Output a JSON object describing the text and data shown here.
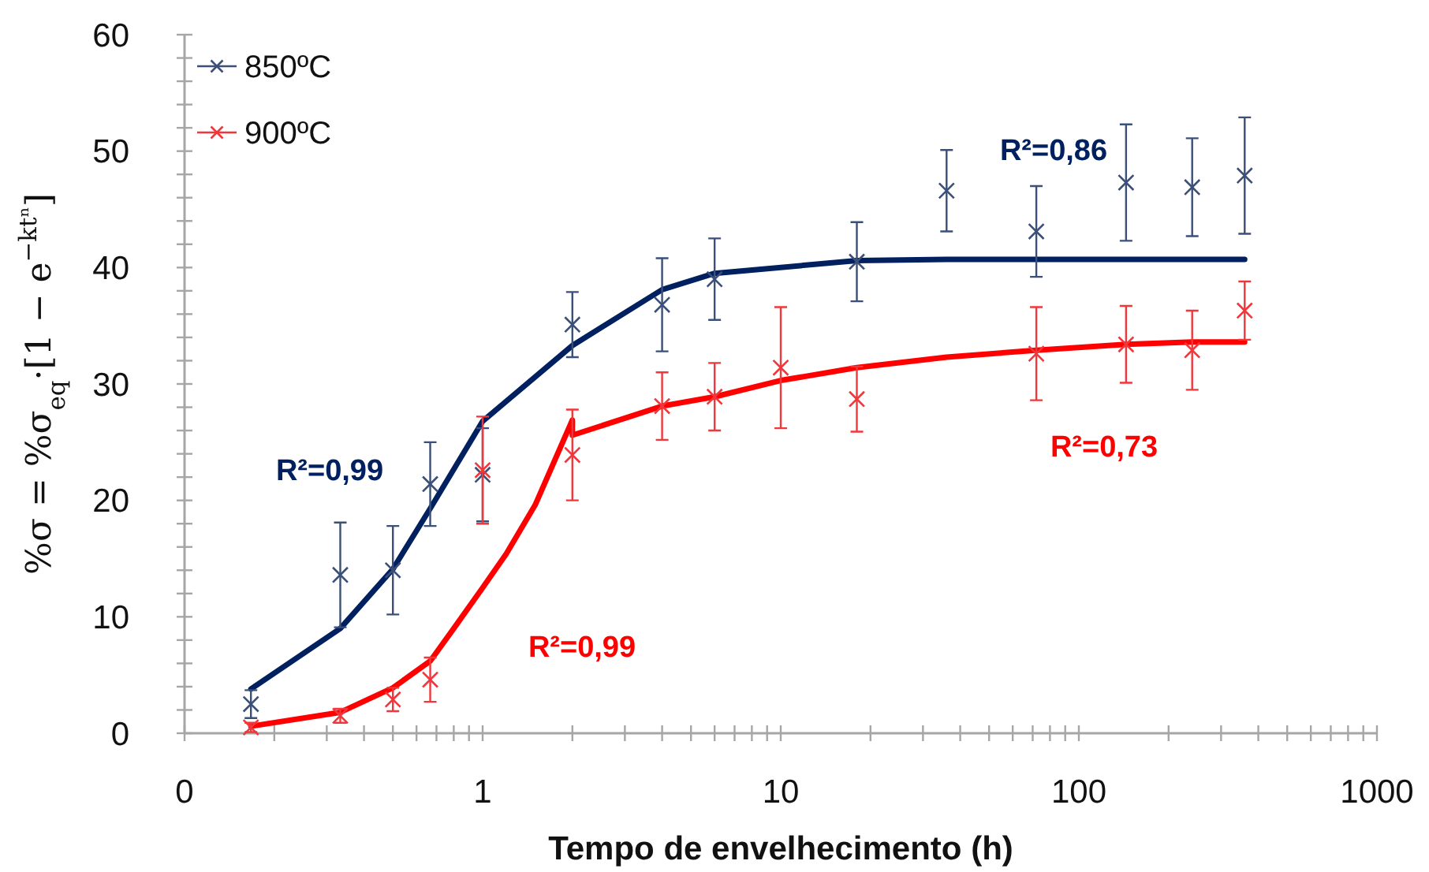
{
  "chart_data": {
    "type": "scatter",
    "xlabel": "Tempo de envelhecimento (h)",
    "ylabel": "%σ = %σ$_{eq}$·[1 − e$^{−ktⁿ}$]",
    "log": "x",
    "legend": "top left",
    "marker": "cross",
    "xlim": [
      0.1,
      1000
    ],
    "ylim": [
      0,
      60
    ],
    "xticks": [
      {
        "value": 0.1,
        "label": "0"
      },
      {
        "value": 0.2,
        "label": null
      },
      {
        "value": 0.3,
        "label": null
      },
      {
        "value": 0.4,
        "label": null
      },
      {
        "value": 0.5,
        "label": null
      },
      {
        "value": 0.6,
        "label": null
      },
      {
        "value": 0.7,
        "label": null
      },
      {
        "value": 0.8,
        "label": null
      },
      {
        "value": 0.9,
        "label": null
      },
      1,
      {
        "value": 2,
        "label": null
      },
      {
        "value": 3,
        "label": null
      },
      {
        "value": 4,
        "label": null
      },
      {
        "value": 5,
        "label": null
      },
      {
        "value": 6,
        "label": null
      },
      {
        "value": 7,
        "label": null
      },
      {
        "value": 8,
        "label": null
      },
      {
        "value": 9,
        "label": null
      },
      10,
      {
        "value": 20,
        "label": null
      },
      {
        "value": 30,
        "label": null
      },
      {
        "value": 40,
        "label": null
      },
      {
        "value": 50,
        "label": null
      },
      {
        "value": 60,
        "label": null
      },
      {
        "value": 70,
        "label": null
      },
      {
        "value": 80,
        "label": null
      },
      {
        "value": 90,
        "label": null
      },
      100,
      {
        "value": 200,
        "label": null
      },
      {
        "value": 300,
        "label": null
      },
      {
        "value": 400,
        "label": null
      },
      {
        "value": 500,
        "label": null
      },
      {
        "value": 600,
        "label": null
      },
      {
        "value": 700,
        "label": null
      },
      {
        "value": 800,
        "label": null
      },
      {
        "value": 900,
        "label": null
      },
      1000
    ],
    "yticks": [
      0,
      {
        "value": 2,
        "label": null
      },
      {
        "value": 4,
        "label": null
      },
      {
        "value": 6,
        "label": null
      },
      {
        "value": 8,
        "label": null
      },
      10,
      {
        "value": 12,
        "label": null
      },
      {
        "value": 14,
        "label": null
      },
      {
        "value": 16,
        "label": null
      },
      {
        "value": 18,
        "label": null
      },
      20,
      {
        "value": 22,
        "label": null
      },
      {
        "value": 24,
        "label": null
      },
      {
        "value": 26,
        "label": null
      },
      {
        "value": 28,
        "label": null
      },
      30,
      {
        "value": 32,
        "label": null
      },
      {
        "value": 34,
        "label": null
      },
      {
        "value": 36,
        "label": null
      },
      {
        "value": 38,
        "label": null
      },
      40,
      {
        "value": 42,
        "label": null
      },
      {
        "value": 44,
        "label": null
      },
      {
        "value": 46,
        "label": null
      },
      {
        "value": 48,
        "label": null
      },
      50,
      {
        "value": 52,
        "label": null
      },
      {
        "value": 54,
        "label": null
      },
      {
        "value": 56,
        "label": null
      },
      {
        "value": 58,
        "label": null
      },
      60
    ],
    "annotations": [
      "R²=0,99",
      "R²=0,99",
      "R²=0,86",
      "R²=0,73"
    ],
    "series": [
      {
        "name": "850ºC",
        "color": "#3b4f78",
        "x": [
          0.167,
          0.333,
          0.5,
          0.667,
          1,
          2,
          4,
          6,
          18,
          36,
          72,
          144,
          240,
          360
        ],
        "values": [
          2.5,
          13.6,
          14.0,
          21.4,
          22.2,
          35.1,
          36.8,
          39.0,
          40.5,
          46.6,
          43.1,
          47.3,
          46.9,
          47.9
        ],
        "errors": [
          1.2,
          4.5,
          3.8,
          3.6,
          4,
          2.8,
          4,
          3.5,
          3.4,
          3.5,
          3.9,
          5,
          4.2,
          5
        ]
      },
      {
        "name": "900ºC",
        "color": "#f0373c",
        "x": [
          0.167,
          0.333,
          0.5,
          0.667,
          1,
          2,
          4,
          6,
          10,
          18,
          72,
          144,
          240,
          360
        ],
        "values": [
          0.5,
          1.5,
          2.9,
          4.6,
          22.6,
          23.9,
          28.1,
          28.9,
          31.4,
          28.7,
          32.6,
          33.4,
          32.9,
          36.3
        ],
        "errors": [
          0.4,
          0.6,
          1.0,
          1.9,
          4.6,
          3.9,
          2.9,
          2.9,
          5.2,
          2.8,
          4,
          3.3,
          3.4,
          2.5
        ]
      },
      {
        "type": "line",
        "marker": "none",
        "color": "#002060",
        "x": [
          0.167,
          0.333,
          0.5,
          0.667,
          1,
          2,
          4,
          6,
          18,
          36,
          72,
          144,
          240,
          360
        ],
        "values": [
          3.8,
          9.0,
          14.1,
          19.3,
          26.8,
          33.3,
          38.1,
          39.5,
          40.6,
          40.7,
          40.7,
          40.7,
          40.7,
          40.7
        ]
      },
      {
        "type": "line",
        "marker": "none",
        "color": "#ff0000",
        "x": [
          0.167,
          0.333,
          0.5,
          0.667,
          0.8,
          1,
          1.2,
          1.5,
          2,
          2,
          4,
          6,
          10,
          18,
          36,
          72,
          144,
          240,
          360
        ],
        "values": [
          0.6,
          1.8,
          3.9,
          6.2,
          9,
          12.5,
          15.4,
          19.6,
          26.9,
          25.6,
          28.1,
          28.9,
          30.3,
          31.4,
          32.3,
          32.9,
          33.4,
          33.6,
          33.6
        ]
      }
    ]
  }
}
